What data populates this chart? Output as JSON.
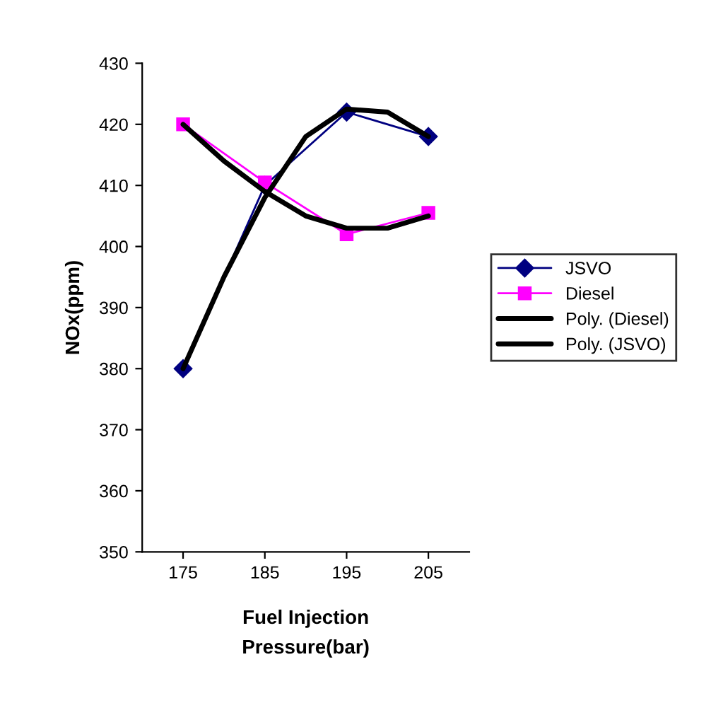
{
  "chart_data": {
    "type": "line",
    "xlabel": "Fuel Injection\nPressure(bar)",
    "ylabel": "NOx(ppm)",
    "xlim": [
      170,
      210
    ],
    "xticks": [
      175,
      185,
      195,
      205
    ],
    "ylim": [
      350,
      430
    ],
    "yticks": [
      350,
      360,
      370,
      380,
      390,
      400,
      410,
      420,
      430
    ],
    "grid": false,
    "legend": "right",
    "series": [
      {
        "name": "JSVO",
        "color": "#000080",
        "marker": "diamond",
        "x": [
          175,
          185,
          195,
          205
        ],
        "values": [
          380,
          410,
          422,
          418
        ]
      },
      {
        "name": "Diesel",
        "color": "#ff00ff",
        "marker": "square",
        "x": [
          175,
          185,
          195,
          205
        ],
        "values": [
          420,
          410.5,
          402,
          405.5
        ]
      },
      {
        "name": "Poly. (Diesel)",
        "color": "#000000",
        "marker": "none",
        "x": [
          175,
          180,
          185,
          190,
          195,
          200,
          205
        ],
        "values": [
          420,
          414,
          409,
          405,
          403,
          403,
          405
        ]
      },
      {
        "name": "Poly. (JSVO)",
        "color": "#000000",
        "marker": "none",
        "x": [
          175,
          180,
          185,
          190,
          195,
          200,
          205
        ],
        "values": [
          380,
          395,
          408,
          418,
          422.5,
          422,
          418
        ]
      }
    ]
  }
}
